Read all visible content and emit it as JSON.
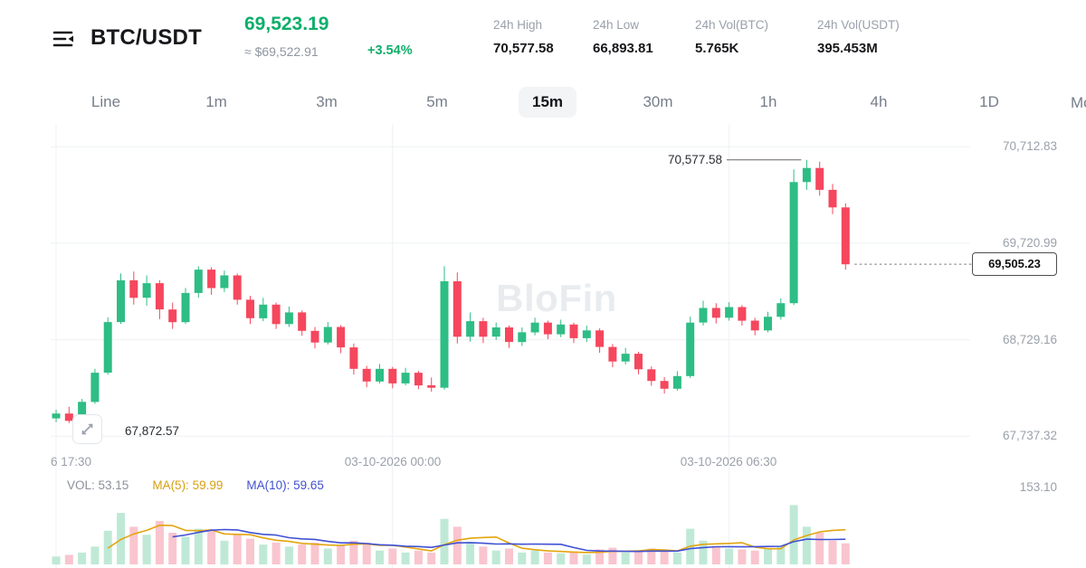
{
  "header": {
    "symbol": "BTC/USDT",
    "price": "69,523.19",
    "approx_price": "≈ $69,522.91",
    "change": "+3.54%",
    "stats": [
      {
        "label": "24h High",
        "value": "70,577.58"
      },
      {
        "label": "24h Low",
        "value": "66,893.81"
      },
      {
        "label": "24h Vol(BTC)",
        "value": "5.765K"
      },
      {
        "label": "24h Vol(USDT)",
        "value": "395.453M"
      }
    ]
  },
  "timeframes": {
    "items": [
      "Line",
      "1m",
      "3m",
      "5m",
      "15m",
      "30m",
      "1h",
      "4h",
      "1D"
    ],
    "selected": "15m",
    "more_label": "Mo"
  },
  "watermark": "BloFin",
  "chart": {
    "y_axis_labels": [
      "70,712.83",
      "69,720.99",
      "68,729.16",
      "67,737.32"
    ],
    "x_axis_labels": [
      "6 17:30",
      "03-10-2026 00:00",
      "03-10-2026 06:30"
    ],
    "high_annotation": "70,577.58",
    "low_annotation": "67,872.57",
    "current_price_label": "69,505.23"
  },
  "volume_pane": {
    "vol_label": "VOL: 53.15",
    "ma5_label": "MA(5): 59.99",
    "ma10_label": "MA(10): 59.65",
    "scale_label": "153.10"
  },
  "colors": {
    "up": "#2ebd85",
    "down": "#f5475d",
    "up_light": "#bfe9d6",
    "down_light": "#f9c5ce",
    "ma5": "#e3a50f",
    "ma10": "#4051d3",
    "green_text": "#0fae6a",
    "label_gray": "#9aa0aa",
    "text_dark": "#17181b",
    "grid": "#eef0f3",
    "annotation": "#666666"
  },
  "chart_data": {
    "type": "candlestick",
    "symbol": "BTC/USDT",
    "interval": "15m",
    "ylim": [
      67600,
      70920
    ],
    "y_gridlines": [
      70712.83,
      69720.99,
      68729.16,
      67737.32
    ],
    "x_gridline_indices": [
      0,
      26,
      52
    ],
    "x_gridline_labels": [
      "6 17:30",
      "03-10-2026 00:00",
      "03-10-2026 06:30"
    ],
    "high_price": 70577.58,
    "low_price": 67872.57,
    "current_price": 69505.23,
    "vol_ylim": [
      0,
      160
    ],
    "candles": [
      [
        67920,
        68010,
        67880,
        67970
      ],
      [
        67970,
        68040,
        67872.57,
        67895
      ],
      [
        67895,
        68120,
        67880,
        68090
      ],
      [
        68090,
        68430,
        68070,
        68390
      ],
      [
        68390,
        68960,
        68370,
        68910
      ],
      [
        68910,
        69410,
        68890,
        69340
      ],
      [
        69340,
        69430,
        69090,
        69160
      ],
      [
        69160,
        69390,
        69080,
        69310
      ],
      [
        69310,
        69340,
        68940,
        69040
      ],
      [
        69040,
        69110,
        68840,
        68910
      ],
      [
        68910,
        69260,
        68890,
        69210
      ],
      [
        69210,
        69485,
        69160,
        69450
      ],
      [
        69450,
        69475,
        69190,
        69260
      ],
      [
        69260,
        69440,
        69220,
        69390
      ],
      [
        69390,
        69410,
        69090,
        69140
      ],
      [
        69140,
        69180,
        68890,
        68950
      ],
      [
        68950,
        69160,
        68920,
        69090
      ],
      [
        69090,
        69110,
        68840,
        68890
      ],
      [
        68890,
        69070,
        68860,
        69010
      ],
      [
        69010,
        69030,
        68770,
        68820
      ],
      [
        68820,
        68860,
        68640,
        68700
      ],
      [
        68700,
        68910,
        68680,
        68860
      ],
      [
        68860,
        68880,
        68590,
        68650
      ],
      [
        68650,
        68690,
        68370,
        68430
      ],
      [
        68430,
        68460,
        68240,
        68300
      ],
      [
        68300,
        68480,
        68280,
        68430
      ],
      [
        68430,
        68450,
        68230,
        68280
      ],
      [
        68280,
        68440,
        68260,
        68390
      ],
      [
        68390,
        68410,
        68220,
        68260
      ],
      [
        68260,
        68340,
        68195,
        68235
      ],
      [
        68235,
        69485,
        68215,
        69330
      ],
      [
        69330,
        69420,
        68690,
        68760
      ],
      [
        68760,
        69010,
        68710,
        68920
      ],
      [
        68920,
        68955,
        68695,
        68760
      ],
      [
        68760,
        68905,
        68725,
        68855
      ],
      [
        68855,
        68875,
        68645,
        68705
      ],
      [
        68705,
        68855,
        68665,
        68805
      ],
      [
        68805,
        68955,
        68775,
        68905
      ],
      [
        68905,
        68925,
        68735,
        68785
      ],
      [
        68785,
        68935,
        68755,
        68885
      ],
      [
        68885,
        68905,
        68695,
        68745
      ],
      [
        68745,
        68875,
        68705,
        68825
      ],
      [
        68825,
        68845,
        68595,
        68655
      ],
      [
        68655,
        68685,
        68445,
        68505
      ],
      [
        68505,
        68645,
        68475,
        68585
      ],
      [
        68585,
        68605,
        68375,
        68425
      ],
      [
        68425,
        68455,
        68255,
        68305
      ],
      [
        68305,
        68345,
        68175,
        68225
      ],
      [
        68225,
        68405,
        68205,
        68355
      ],
      [
        68355,
        68965,
        68335,
        68905
      ],
      [
        68905,
        69130,
        68875,
        69055
      ],
      [
        69055,
        69105,
        68895,
        68955
      ],
      [
        68955,
        69115,
        68925,
        69065
      ],
      [
        69065,
        69085,
        68875,
        68925
      ],
      [
        68925,
        68955,
        68775,
        68825
      ],
      [
        68825,
        69015,
        68805,
        68965
      ],
      [
        68965,
        69155,
        68935,
        69105
      ],
      [
        69105,
        70480,
        69085,
        70350
      ],
      [
        70350,
        70577.58,
        70270,
        70495
      ],
      [
        70495,
        70560,
        70210,
        70270
      ],
      [
        70270,
        70330,
        70020,
        70090
      ],
      [
        70090,
        70130,
        69450,
        69505.23
      ]
    ],
    "volumes": [
      20,
      24,
      30,
      45,
      85,
      130,
      95,
      75,
      110,
      80,
      70,
      90,
      85,
      60,
      75,
      65,
      50,
      55,
      45,
      50,
      55,
      40,
      50,
      60,
      55,
      35,
      40,
      30,
      35,
      30,
      115,
      95,
      55,
      45,
      35,
      40,
      30,
      35,
      30,
      28,
      32,
      25,
      38,
      42,
      30,
      36,
      40,
      34,
      30,
      90,
      60,
      45,
      40,
      38,
      35,
      40,
      45,
      150,
      95,
      80,
      60,
      53.15
    ]
  }
}
